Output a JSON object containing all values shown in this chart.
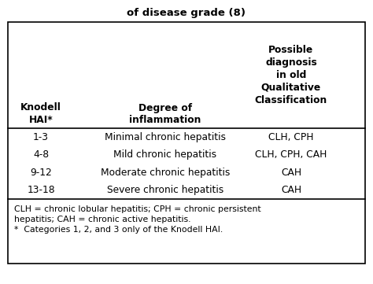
{
  "title": "of disease grade (8)",
  "col_headers": [
    "Knodell\nHAI*",
    "Degree of\ninflammation",
    "Possible\ndiagnosis\nin old\nQualitative\nClassification"
  ],
  "rows": [
    [
      "1-3",
      "Minimal chronic hepatitis",
      "CLH, CPH"
    ],
    [
      "4-8",
      "Mild chronic hepatitis",
      "CLH, CPH, CAH"
    ],
    [
      "9-12",
      "Moderate chronic hepatitis",
      "CAH"
    ],
    [
      "13-18",
      "Severe chronic hepatitis",
      "CAH"
    ]
  ],
  "footnote_lines": [
    "CLH = chronic lobular hepatitis; CPH = chronic persistent",
    "hepatitis; CAH = chronic active hepatitis.",
    "*  Categories 1, 2, and 3 only of the Knodell HAI."
  ],
  "bg_color": "#ffffff",
  "border_color": "#000000",
  "text_color": "#000000",
  "title_fontsize": 9.5,
  "header_fontsize": 8.8,
  "body_fontsize": 8.8,
  "footnote_fontsize": 7.8
}
